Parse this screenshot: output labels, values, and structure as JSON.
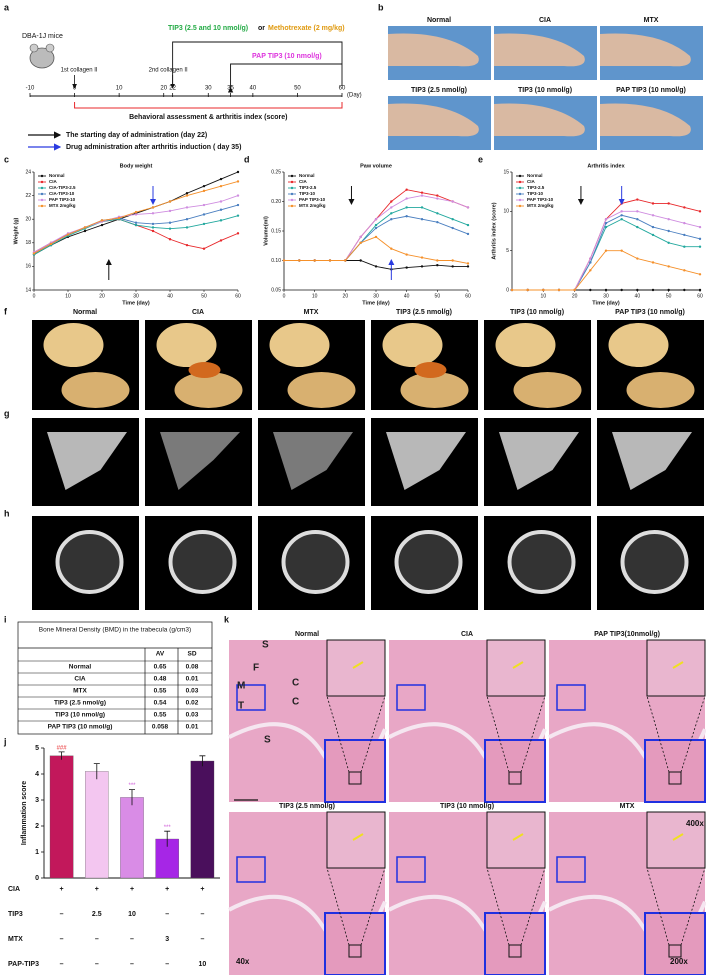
{
  "panel_labels": [
    "a",
    "b",
    "c",
    "d",
    "e",
    "f",
    "g",
    "h",
    "i",
    "j",
    "k"
  ],
  "timeline": {
    "mouse": "DBA-1J mice",
    "first_boost": "1st collagen II",
    "second_boost": "2nd collagen II",
    "treatment": "TIP3 (2.5 and 10 nmol/g)",
    "or": "or",
    "mtx": "Methotrexate (2 mg/kg)",
    "pap": "PAP TIP3 (10 nmol/g)",
    "ticks": [
      -10,
      0,
      10,
      20,
      22,
      30,
      35,
      40,
      50,
      60
    ],
    "unit": "(Day)",
    "range": "Behavioral assessment & arthritis index (score)",
    "legend": [
      "The starting day of administration (day 22)",
      "Drug administration after arthritis induction ( day 35)"
    ]
  },
  "photos": {
    "labels": [
      "Normal",
      "CIA",
      "MTX",
      "TIP3 (2.5 nmol/g)",
      "TIP3 (10 nmol/g)",
      "PAP TIP3 (10 nmol/g)"
    ]
  },
  "micro_ct": {
    "labels": [
      "Normal",
      "CIA",
      "MTX",
      "TIP3 (2.5 nmol/g)",
      "TIP3 (10 nmol/g)",
      "PAP TIP3 (10 nmol/g)"
    ]
  },
  "bmd_table": {
    "title": "Bone Mineral Density (BMD) in the trabecula (g/cm3)",
    "columns": [
      "AV",
      "SD"
    ],
    "rows": [
      [
        "Normal",
        0.65,
        0.08
      ],
      [
        "CIA",
        0.48,
        0.01
      ],
      [
        "MTX",
        0.55,
        0.03
      ],
      [
        "TIP3 (2.5 nmol/g)",
        0.54,
        0.02
      ],
      [
        "TIP3 (10 nmol/g)",
        0.55,
        0.03
      ],
      [
        "PAP TIP3 (10 nmol/g)",
        0.058,
        0.01
      ]
    ]
  },
  "histology": {
    "labels": [
      "Normal",
      "CIA",
      "PAP TIP3(10nmol/g)",
      "TIP3 (2.5 nmol/g)",
      "TIP3 (10 nmol/g)",
      "MTX"
    ],
    "annotations": [
      "S",
      "F",
      "M",
      "C",
      "C",
      "T",
      "S",
      "400x",
      "40x",
      "200x"
    ]
  },
  "chart_data": [
    {
      "type": "line",
      "title": "Body weight",
      "x_label": "Time (day)",
      "y_label": "Weight (g)",
      "x": [
        0,
        5,
        10,
        15,
        20,
        25,
        30,
        35,
        40,
        45,
        50,
        55,
        60
      ],
      "xlim": [
        0,
        60
      ],
      "xticks": [
        0,
        10,
        20,
        30,
        40,
        50,
        60
      ],
      "ylim": [
        14,
        24
      ],
      "yticks": [
        14,
        16,
        18,
        20,
        22,
        24
      ],
      "series": [
        {
          "name": "Normal",
          "color": "#111111",
          "values": [
            17,
            17.8,
            18.5,
            19,
            19.5,
            20,
            20.5,
            21,
            21.5,
            22.2,
            22.8,
            23.4,
            24
          ]
        },
        {
          "name": "CIA",
          "color": "#e8282b",
          "values": [
            17.2,
            18,
            18.7,
            19.3,
            19.8,
            20,
            19.5,
            19,
            18.3,
            17.8,
            17.5,
            18.2,
            18.8
          ]
        },
        {
          "name": "CIA-TIP3-2.5",
          "color": "#22a89e",
          "values": [
            17,
            17.8,
            18.6,
            19.2,
            19.8,
            20,
            19.5,
            19.3,
            19.2,
            19.3,
            19.6,
            19.9,
            20.3
          ]
        },
        {
          "name": "CIA-TIP3-10",
          "color": "#4a7fc0",
          "values": [
            17.1,
            17.9,
            18.7,
            19.3,
            19.9,
            20.1,
            19.7,
            19.6,
            19.7,
            20,
            20.4,
            20.8,
            21.2
          ]
        },
        {
          "name": "PAP TIP3-10",
          "color": "#cf8de0",
          "values": [
            17.2,
            18,
            18.8,
            19.3,
            19.8,
            20.2,
            20.4,
            20.5,
            20.7,
            21,
            21.2,
            21.5,
            22
          ]
        },
        {
          "name": "MTX 2mg/kg",
          "color": "#f5902a",
          "values": [
            17.1,
            17.9,
            18.7,
            19.3,
            19.9,
            20.1,
            20.6,
            21,
            21.5,
            22,
            22.4,
            22.8,
            23.2
          ]
        }
      ],
      "arrows": [
        {
          "x": 22,
          "color": "#111111",
          "direction": "up"
        },
        {
          "x": 35,
          "color": "#2a3be0",
          "direction": "down"
        }
      ]
    },
    {
      "type": "line",
      "title": "Paw volume",
      "x_label": "Time (day)",
      "y_label": "Volume(ml)",
      "x": [
        0,
        5,
        10,
        15,
        20,
        25,
        30,
        35,
        40,
        45,
        50,
        55,
        60
      ],
      "xlim": [
        0,
        60
      ],
      "xticks": [
        0,
        10,
        20,
        30,
        40,
        50,
        60
      ],
      "ylim": [
        0.05,
        0.25
      ],
      "yticks": [
        {
          "value": 0.05,
          "label": "0.05"
        },
        {
          "value": 0.1,
          "label": "0.10"
        },
        {
          "value": 0.15,
          "label": "0.15"
        },
        {
          "value": 0.2,
          "label": "0.20"
        },
        {
          "value": 0.25,
          "label": "0.25"
        }
      ],
      "series": [
        {
          "name": "Normal",
          "color": "#111111",
          "values": [
            0.1,
            0.1,
            0.1,
            0.1,
            0.1,
            0.1,
            0.09,
            0.085,
            0.088,
            0.09,
            0.092,
            0.09,
            0.09
          ]
        },
        {
          "name": "CIA",
          "color": "#e8282b",
          "values": [
            0.1,
            0.1,
            0.1,
            0.1,
            0.1,
            0.14,
            0.17,
            0.2,
            0.22,
            0.215,
            0.21,
            0.2,
            0.19
          ]
        },
        {
          "name": "TIP3-2.5",
          "color": "#22a89e",
          "values": [
            0.1,
            0.1,
            0.1,
            0.1,
            0.1,
            0.13,
            0.16,
            0.18,
            0.19,
            0.19,
            0.18,
            0.17,
            0.16
          ]
        },
        {
          "name": "TIP3-10",
          "color": "#4a7fc0",
          "values": [
            0.1,
            0.1,
            0.1,
            0.1,
            0.1,
            0.13,
            0.155,
            0.17,
            0.175,
            0.17,
            0.165,
            0.155,
            0.145
          ]
        },
        {
          "name": "PAP TIP3-10",
          "color": "#cf8de0",
          "values": [
            0.1,
            0.1,
            0.1,
            0.1,
            0.1,
            0.14,
            0.17,
            0.19,
            0.205,
            0.21,
            0.205,
            0.2,
            0.19
          ]
        },
        {
          "name": "MTX 2mg/kg",
          "color": "#f5902a",
          "values": [
            0.1,
            0.1,
            0.1,
            0.1,
            0.1,
            0.13,
            0.14,
            0.12,
            0.11,
            0.105,
            0.1,
            0.1,
            0.095
          ]
        }
      ],
      "arrows": [
        {
          "x": 22,
          "color": "#111111",
          "direction": "down"
        },
        {
          "x": 35,
          "color": "#2a3be0",
          "direction": "up"
        }
      ]
    },
    {
      "type": "line",
      "title": "Arthritis index",
      "x_label": "Time (day)",
      "y_label": "Arthritis index (score)",
      "x": [
        0,
        5,
        10,
        15,
        20,
        25,
        30,
        35,
        40,
        45,
        50,
        55,
        60
      ],
      "xlim": [
        0,
        60
      ],
      "xticks": [
        10,
        20,
        30,
        40,
        50,
        60
      ],
      "ylim": [
        0,
        15
      ],
      "yticks": [
        0,
        5,
        10,
        15
      ],
      "series": [
        {
          "name": "Normal",
          "color": "#111111",
          "values": [
            0,
            0,
            0,
            0,
            0,
            0,
            0,
            0,
            0,
            0,
            0,
            0,
            0
          ]
        },
        {
          "name": "CIA",
          "color": "#e8282b",
          "values": [
            0,
            0,
            0,
            0,
            0,
            4,
            9,
            11,
            11.5,
            11,
            11,
            10.5,
            10
          ]
        },
        {
          "name": "TIP3-2.5",
          "color": "#22a89e",
          "values": [
            0,
            0,
            0,
            0,
            0,
            3.5,
            8,
            9,
            8,
            7,
            6,
            5.5,
            5.5
          ]
        },
        {
          "name": "TIP3-10",
          "color": "#4a7fc0",
          "values": [
            0,
            0,
            0,
            0,
            0,
            3.5,
            8.5,
            9.5,
            9,
            8,
            7.5,
            7,
            6.5
          ]
        },
        {
          "name": "PAP TIP3-10",
          "color": "#cf8de0",
          "values": [
            0,
            0,
            0,
            0,
            0,
            4,
            9,
            10,
            10,
            9.5,
            9,
            8.5,
            8
          ]
        },
        {
          "name": "MTX 2mg/kg",
          "color": "#f5902a",
          "values": [
            0,
            0,
            0,
            0,
            0,
            2.5,
            5,
            5,
            4,
            3.5,
            3,
            2.5,
            2
          ]
        }
      ],
      "arrows": [
        {
          "x": 22,
          "color": "#111111",
          "direction": "down"
        },
        {
          "x": 35,
          "color": "#2a3be0",
          "direction": "down"
        }
      ]
    },
    {
      "type": "bar",
      "y_label": "Inflammation score",
      "ylim": [
        0,
        5
      ],
      "yticks": [
        0,
        1,
        2,
        3,
        4,
        5
      ],
      "values": [
        4.7,
        4.1,
        3.1,
        1.5,
        4.5
      ],
      "errors": [
        0.15,
        0.3,
        0.3,
        0.3,
        0.2
      ],
      "colors": [
        "#c2185b",
        "#f3c6f0",
        "#d98ce6",
        "#a626e6",
        "#4a0f5c"
      ],
      "significance": [
        "###",
        null,
        "***",
        "***",
        null
      ],
      "significance_colors": [
        "#e8282b",
        null,
        "#cf5ad8",
        "#cf5ad8",
        null
      ],
      "conditions": [
        [
          "CIA",
          "+",
          "+",
          "+",
          "+",
          "+"
        ],
        [
          "TIP3",
          "–",
          "2.5",
          "10",
          "–",
          "–"
        ],
        [
          "MTX",
          "–",
          "–",
          "–",
          "3",
          "–"
        ],
        [
          "PAP-TIP3",
          "–",
          "–",
          "–",
          "–",
          "10"
        ]
      ]
    }
  ]
}
